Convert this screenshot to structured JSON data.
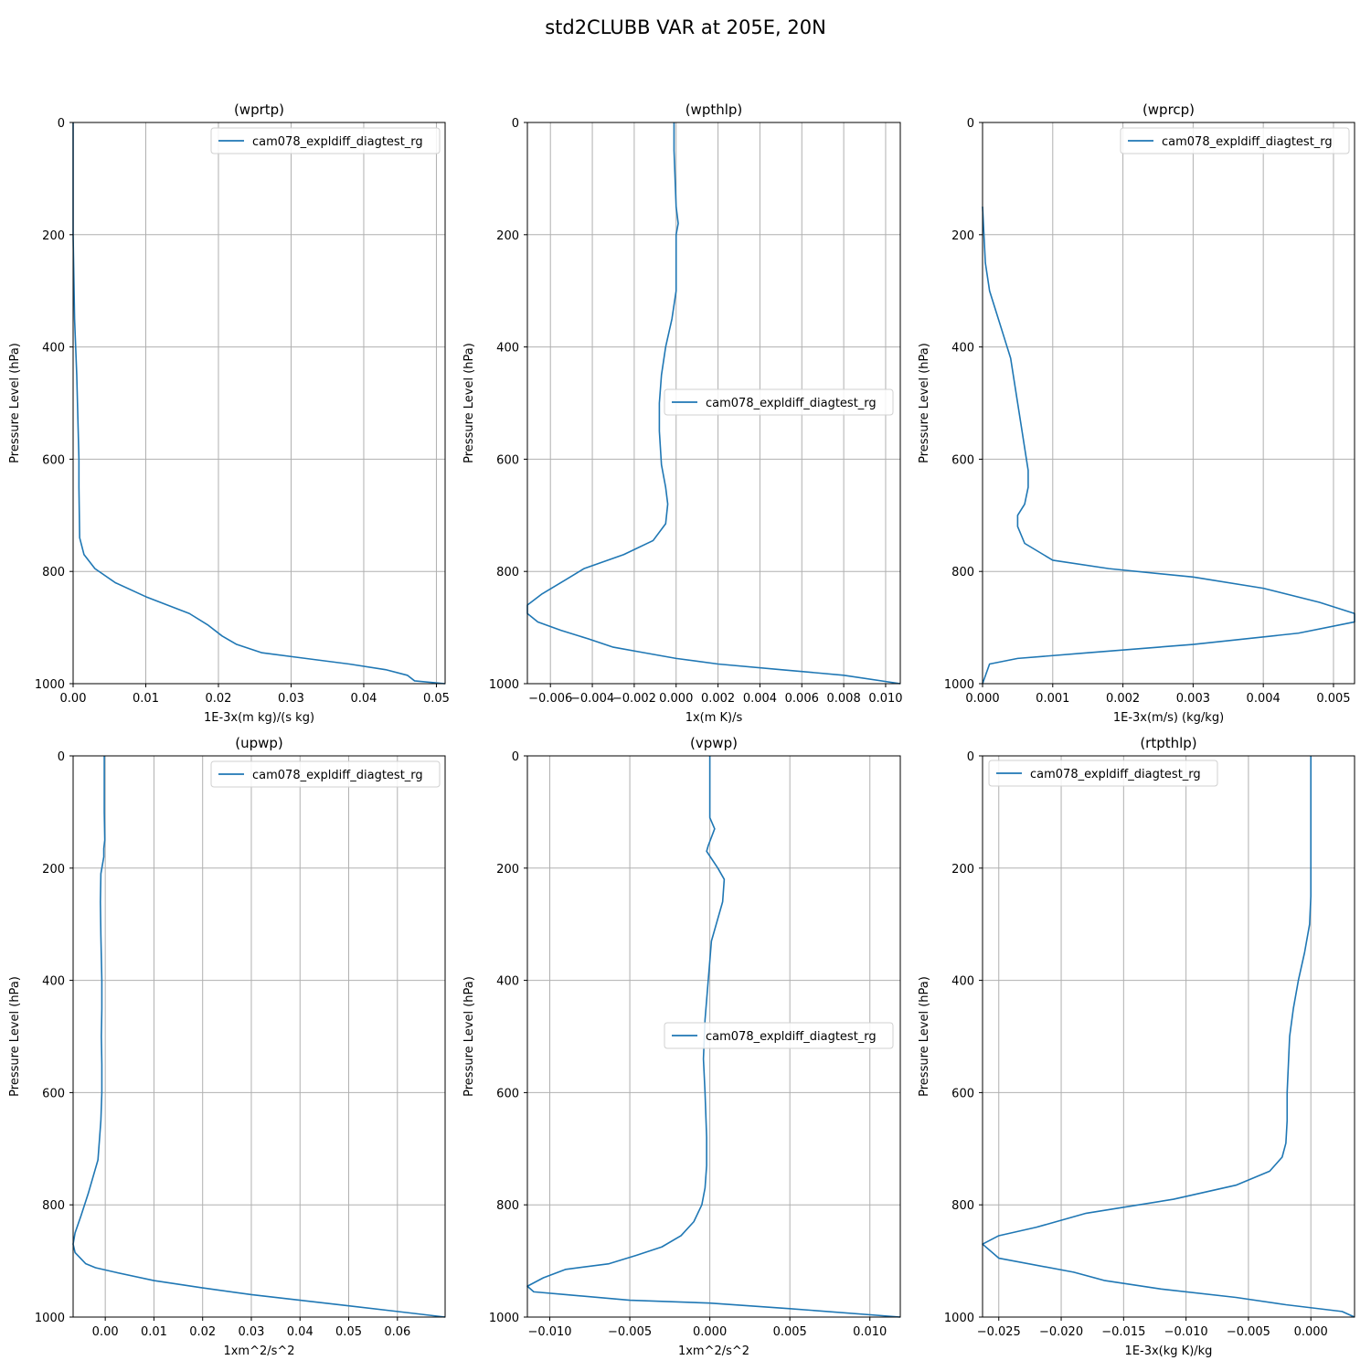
{
  "figure": {
    "title": "std2CLUBB VAR at 205E, 20N"
  },
  "colors": {
    "series": "#1f77b4",
    "grid": "#b0b0b0",
    "axis": "#000000"
  },
  "chart_data": [
    {
      "type": "line",
      "title": "(wprtp)",
      "xlabel": "1E-3x(m kg)/(s kg)",
      "ylabel": "Pressure Level (hPa)",
      "xlim": [
        0,
        0.0512
      ],
      "ylim": [
        1000,
        0
      ],
      "xticks": [
        0,
        0.01,
        0.02,
        0.03,
        0.04,
        0.05
      ],
      "xtick_labels": [
        "0.00",
        "0.01",
        "0.02",
        "0.03",
        "0.04",
        "0.05"
      ],
      "yticks": [
        0,
        200,
        400,
        600,
        800,
        1000
      ],
      "ytick_labels": [
        "0",
        "200",
        "400",
        "600",
        "800",
        "1000"
      ],
      "grid": true,
      "legend": "upper right",
      "series": [
        {
          "name": "cam078_expldiff_diagtest_rg",
          "x": [
            0,
            0,
            0.0002,
            0.0005,
            0.0006,
            0.0007,
            0.0008,
            0.0008,
            0.0009,
            0.0015,
            0.003,
            0.0058,
            0.01,
            0.016,
            0.0185,
            0.0205,
            0.0225,
            0.026,
            0.032,
            0.038,
            0.043,
            0.046,
            0.047,
            0.0512
          ],
          "y": [
            0,
            200,
            350,
            450,
            500,
            550,
            600,
            650,
            740,
            770,
            795,
            820,
            845,
            875,
            895,
            915,
            930,
            945,
            955,
            965,
            975,
            985,
            995,
            1000
          ]
        }
      ]
    },
    {
      "type": "line",
      "title": "(wpthlp)",
      "xlabel": "1x(m K)/s",
      "ylabel": "Pressure Level (hPa)",
      "xlim": [
        -0.0071,
        0.0107
      ],
      "ylim": [
        1000,
        0
      ],
      "xticks": [
        -0.006,
        -0.004,
        -0.002,
        0,
        0.002,
        0.004,
        0.006,
        0.008,
        0.01
      ],
      "xtick_labels": [
        "−0.006",
        "−0.004",
        "−0.002",
        "0.000",
        "0.002",
        "0.004",
        "0.006",
        "0.008",
        "0.010"
      ],
      "yticks": [
        0,
        200,
        400,
        600,
        800,
        1000
      ],
      "ytick_labels": [
        "0",
        "200",
        "400",
        "600",
        "800",
        "1000"
      ],
      "grid": true,
      "legend": "center right",
      "series": [
        {
          "name": "cam078_expldiff_diagtest_rg",
          "x": [
            -0.0001,
            -0.0001,
            0,
            0.0001,
            0,
            0,
            -0.0002,
            -0.0005,
            -0.0007,
            -0.0008,
            -0.0008,
            -0.0007,
            -0.0005,
            -0.0004,
            -0.0005,
            -0.0011,
            -0.0025,
            -0.0044,
            -0.0055,
            -0.0064,
            -0.0071,
            -0.0071,
            -0.0066,
            -0.0055,
            -0.0042,
            -0.003,
            -0.0015,
            0,
            0.002,
            0.005,
            0.008,
            0.0107
          ],
          "y": [
            0,
            50,
            150,
            180,
            200,
            300,
            350,
            400,
            450,
            500,
            550,
            610,
            650,
            680,
            715,
            745,
            770,
            795,
            820,
            840,
            860,
            875,
            890,
            905,
            920,
            935,
            945,
            955,
            965,
            975,
            985,
            1000
          ]
        }
      ]
    },
    {
      "type": "line",
      "title": "(wprcp)",
      "xlabel": "1E-3x(m/s) (kg/kg)",
      "ylabel": "Pressure Level (hPa)",
      "xlim": [
        0,
        0.0053
      ],
      "ylim": [
        1000,
        0
      ],
      "xticks": [
        0,
        0.001,
        0.002,
        0.003,
        0.004,
        0.005
      ],
      "xtick_labels": [
        "0.000",
        "0.001",
        "0.002",
        "0.003",
        "0.004",
        "0.005"
      ],
      "yticks": [
        0,
        200,
        400,
        600,
        800,
        1000
      ],
      "ytick_labels": [
        "0",
        "200",
        "400",
        "600",
        "800",
        "1000"
      ],
      "grid": true,
      "legend": "upper right",
      "series": [
        {
          "name": "cam078_expldiff_diagtest_rg",
          "x": [
            0,
            2e-05,
            4e-05,
            0.0001,
            0.0002,
            0.0003,
            0.0004,
            0.00045,
            0.0005,
            0.00055,
            0.0006,
            0.00065,
            0.00065,
            0.0006,
            0.0005,
            0.0005,
            0.0006,
            0.001,
            0.0018,
            0.003,
            0.004,
            0.0048,
            0.0053,
            0.0053,
            0.0045,
            0.003,
            0.0015,
            0.0005,
            0.0001,
            0
          ],
          "y": [
            150,
            200,
            250,
            300,
            340,
            380,
            420,
            460,
            500,
            540,
            580,
            620,
            650,
            680,
            700,
            720,
            750,
            780,
            795,
            810,
            830,
            855,
            875,
            890,
            910,
            930,
            945,
            955,
            965,
            1000
          ]
        }
      ]
    },
    {
      "type": "line",
      "title": "(upwp)",
      "xlabel": "1xm^2/s^2",
      "ylabel": "Pressure Level (hPa)",
      "xlim": [
        -0.0066,
        0.0698
      ],
      "ylim": [
        1000,
        0
      ],
      "xticks": [
        0,
        0.01,
        0.02,
        0.03,
        0.04,
        0.05,
        0.06
      ],
      "xtick_labels": [
        "0.00",
        "0.01",
        "0.02",
        "0.03",
        "0.04",
        "0.05",
        "0.06"
      ],
      "yticks": [
        0,
        200,
        400,
        600,
        800,
        1000
      ],
      "ytick_labels": [
        "0",
        "200",
        "400",
        "600",
        "800",
        "1000"
      ],
      "grid": true,
      "legend": "upper right",
      "series": [
        {
          "name": "cam078_expldiff_diagtest_rg",
          "x": [
            -0.0002,
            -0.0002,
            -0.0001,
            -0.0003,
            -0.0003,
            -0.0009,
            -0.001,
            -0.0009,
            -0.0007,
            -0.0007,
            -0.0008,
            -0.0007,
            -0.0007,
            -0.0009,
            -0.0015,
            -0.0035,
            -0.005,
            -0.0062,
            -0.0066,
            -0.0062,
            -0.004,
            -0.002,
            0.002,
            0.01,
            0.02,
            0.03,
            0.04,
            0.05,
            0.06,
            0.0698
          ],
          "y": [
            0,
            100,
            150,
            165,
            180,
            210,
            260,
            320,
            400,
            450,
            500,
            550,
            600,
            650,
            720,
            780,
            820,
            850,
            870,
            885,
            905,
            912,
            920,
            935,
            948,
            960,
            970,
            980,
            990,
            1000
          ]
        }
      ]
    },
    {
      "type": "line",
      "title": "(vpwp)",
      "xlabel": "1xm^2/s^2",
      "ylabel": "Pressure Level (hPa)",
      "xlim": [
        -0.0114,
        0.0119
      ],
      "ylim": [
        1000,
        0
      ],
      "xticks": [
        -0.01,
        -0.005,
        0,
        0.005,
        0.01
      ],
      "xtick_labels": [
        "−0.010",
        "−0.005",
        "0.000",
        "0.005",
        "0.010"
      ],
      "yticks": [
        0,
        200,
        400,
        600,
        800,
        1000
      ],
      "ytick_labels": [
        "0",
        "200",
        "400",
        "600",
        "800",
        "1000"
      ],
      "grid": true,
      "legend": "center right",
      "series": [
        {
          "name": "cam078_expldiff_diagtest_rg",
          "x": [
            0,
            0,
            0,
            0.0003,
            -0.0001,
            -0.0002,
            0.0005,
            0.0009,
            0.0008,
            0.0004,
            0.0001,
            -0.0001,
            -0.0003,
            -0.0004,
            -0.0003,
            -0.0002,
            -0.0002,
            -0.0003,
            -0.0005,
            -0.001,
            -0.0018,
            -0.003,
            -0.0046,
            -0.0063,
            -0.009,
            -0.0104,
            -0.0114,
            -0.011,
            -0.009,
            -0.005,
            0,
            0.005,
            0.0119
          ],
          "y": [
            0,
            50,
            110,
            130,
            160,
            170,
            200,
            220,
            260,
            300,
            330,
            400,
            470,
            540,
            600,
            680,
            730,
            770,
            800,
            830,
            855,
            875,
            890,
            905,
            915,
            930,
            945,
            955,
            960,
            970,
            975,
            985,
            1000
          ]
        }
      ]
    },
    {
      "type": "line",
      "title": "(rtpthlp)",
      "xlabel": "1E-3x(kg K)/kg",
      "ylabel": "Pressure Level (hPa)",
      "xlim": [
        -0.0263,
        0.0035
      ],
      "ylim": [
        1000,
        0
      ],
      "xticks": [
        -0.025,
        -0.02,
        -0.015,
        -0.01,
        -0.005,
        0
      ],
      "xtick_labels": [
        "−0.025",
        "−0.020",
        "−0.015",
        "−0.010",
        "−0.005",
        "0.000"
      ],
      "yticks": [
        0,
        200,
        400,
        600,
        800,
        1000
      ],
      "ytick_labels": [
        "0",
        "200",
        "400",
        "600",
        "800",
        "1000"
      ],
      "grid": true,
      "legend": "upper left",
      "series": [
        {
          "name": "cam078_expldiff_diagtest_rg",
          "x": [
            0,
            0,
            -0.0001,
            -0.0005,
            -0.001,
            -0.0014,
            -0.0017,
            -0.0018,
            -0.0019,
            -0.0019,
            -0.002,
            -0.0023,
            -0.0033,
            -0.006,
            -0.011,
            -0.018,
            -0.022,
            -0.025,
            -0.0263,
            -0.025,
            -0.019,
            -0.0165,
            -0.012,
            -0.006,
            -0.002,
            0.0025,
            0.0035
          ],
          "y": [
            0,
            250,
            300,
            350,
            400,
            450,
            500,
            550,
            600,
            650,
            690,
            715,
            740,
            765,
            790,
            815,
            840,
            855,
            870,
            895,
            920,
            935,
            950,
            965,
            978,
            990,
            1000
          ]
        }
      ]
    }
  ]
}
